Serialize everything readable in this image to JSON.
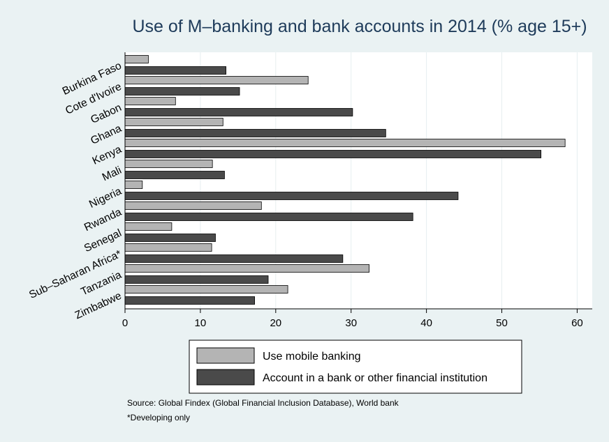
{
  "chart_data": {
    "type": "bar",
    "orientation": "horizontal",
    "title": "Use of M–banking and bank accounts in 2014 (% age 15+)",
    "categories": [
      "Burkina Faso",
      "Cote d'Ivoire",
      "Gabon",
      "Ghana",
      "Kenya",
      "Mali",
      "Nigeria",
      "Rwanda",
      "Senegal",
      "Sub–Saharan Africa*",
      "Tanzania",
      "Zimbabwe"
    ],
    "series": [
      {
        "name": "Use mobile banking",
        "color": "#b4b4b4",
        "values": [
          3.1,
          24.3,
          6.7,
          13.0,
          58.4,
          11.6,
          2.3,
          18.1,
          6.2,
          11.5,
          32.4,
          21.6
        ]
      },
      {
        "name": "Account in a bank or other financial institution",
        "color": "#4a4a4a",
        "values": [
          13.4,
          15.2,
          30.2,
          34.6,
          55.2,
          13.2,
          44.2,
          38.2,
          12.0,
          28.9,
          19.0,
          17.2
        ]
      }
    ],
    "xlim": [
      0,
      62
    ],
    "ticks": [
      0,
      10,
      20,
      30,
      40,
      50,
      60
    ],
    "grid": "vertical",
    "legend_position": "bottom",
    "notes": [
      "Source: Global Findex (Global Financial Inclusion Database), World bank",
      "*Developing only"
    ]
  }
}
